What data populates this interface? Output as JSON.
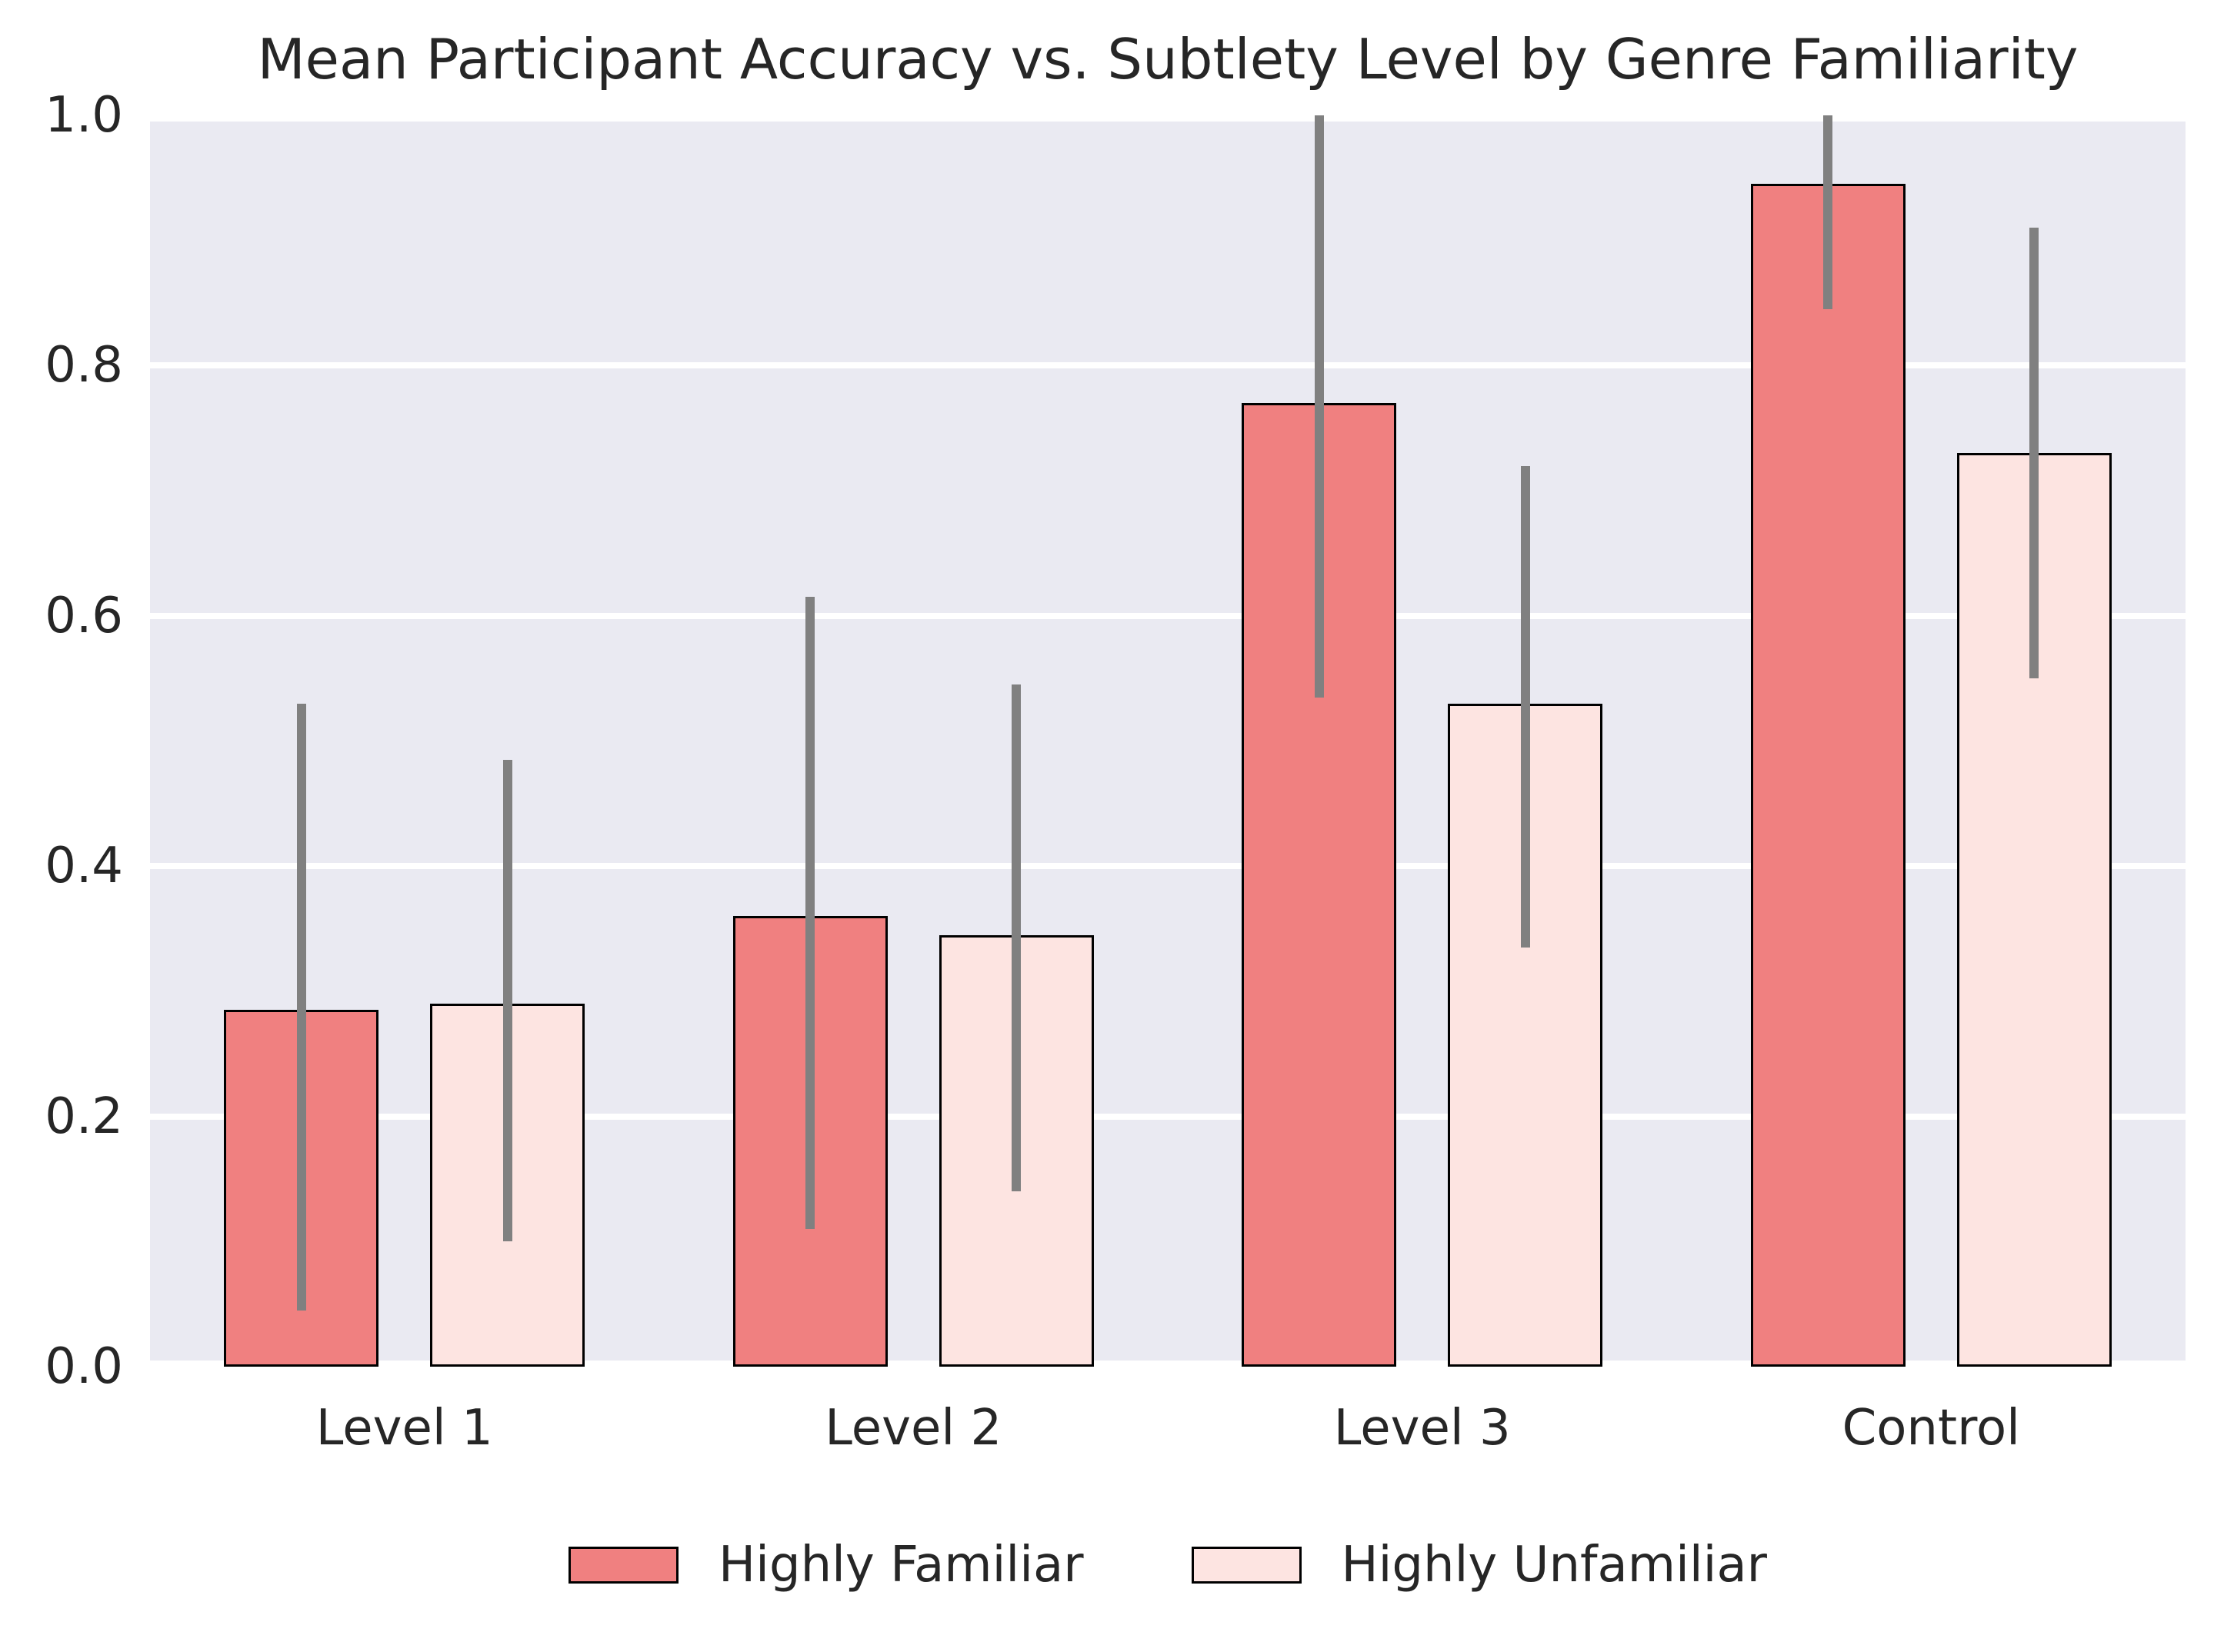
{
  "chart_data": {
    "type": "bar",
    "title": "Mean Participant Accuracy vs. Subtlety Level by Genre Familiarity",
    "xlabel": "",
    "ylabel": "",
    "categories": [
      "Level 1",
      "Level 2",
      "Level 3",
      "Control"
    ],
    "series": [
      {
        "name": "Highly Familiar",
        "color": "#F08080",
        "values": [
          0.285,
          0.36,
          0.77,
          0.945
        ],
        "err_low": [
          0.045,
          0.11,
          0.535,
          0.845
        ],
        "err_high": [
          0.53,
          0.615,
          1.0,
          1.0
        ]
      },
      {
        "name": "Highly Unfamiliar",
        "color": "#FDE4E1",
        "values": [
          0.29,
          0.345,
          0.53,
          0.73
        ],
        "err_low": [
          0.1,
          0.14,
          0.335,
          0.55
        ],
        "err_high": [
          0.485,
          0.545,
          0.72,
          0.91
        ]
      }
    ],
    "ylim": [
      0.0,
      1.0
    ],
    "yticks": [
      "0.0",
      "0.2",
      "0.4",
      "0.6",
      "0.8",
      "1.0"
    ],
    "grid": true,
    "legend_position": "bottom"
  },
  "colors": {
    "plot_background": "#EAEAF2",
    "figure_background": "#FFFFFF",
    "gridline": "#FFFFFF",
    "bar_edge": "#000000",
    "error_bar": "#808080",
    "text": "#262626",
    "familiar_fill": "#F08080",
    "unfamiliar_fill": "#FDE4E1"
  }
}
